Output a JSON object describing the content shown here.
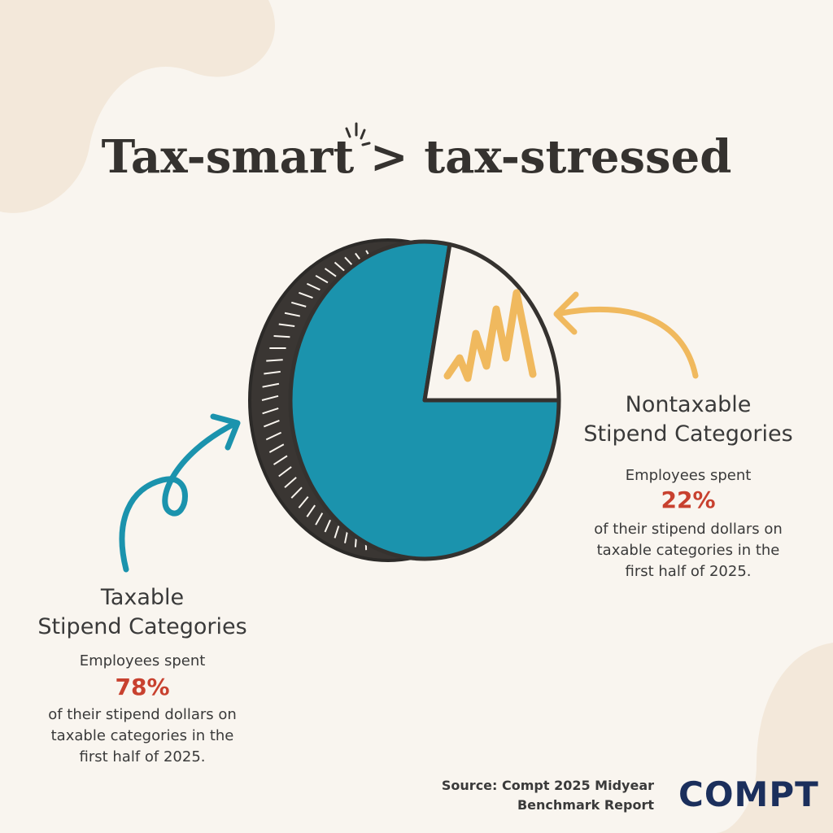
{
  "chart_data": {
    "type": "pie",
    "title": "Tax-smart > tax-stressed",
    "categories": [
      "Taxable\nStipend Categories",
      "Nontaxable\nStipend Categories"
    ],
    "values": [
      78,
      22
    ],
    "value_labels": [
      "78%",
      "22%"
    ],
    "colors": [
      "#1b93ad",
      "#f0b95e"
    ],
    "value_label_color": "#c8412f",
    "annotations": [
      {
        "lead": "Employees spent",
        "body": "of their stipend dollars on\ntaxable categories in the\nfirst half of 2025."
      },
      {
        "lead": "Employees spent",
        "body": "of their stipend dollars on\ntaxable categories in the\nfirst half of 2025."
      }
    ]
  },
  "source": "Source: Compt 2025 Midyear\nBenchmark Report",
  "logo": "COMPT"
}
